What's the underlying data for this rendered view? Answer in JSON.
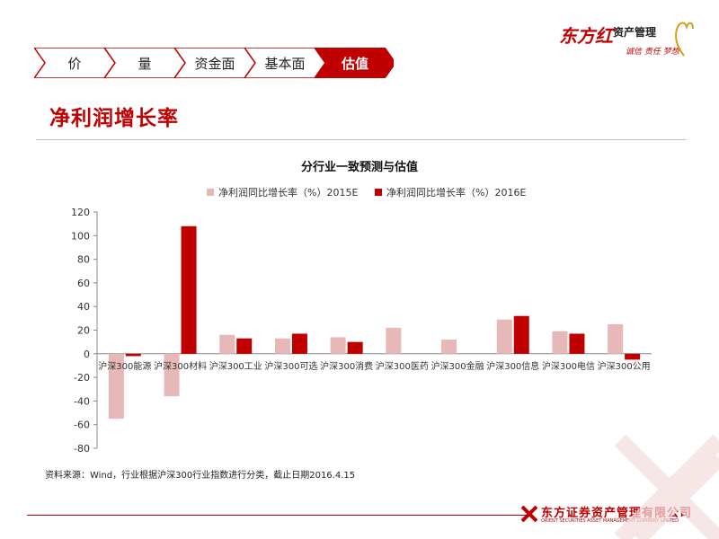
{
  "nav": {
    "tabs": [
      {
        "label": "价",
        "active": false
      },
      {
        "label": "量",
        "active": false
      },
      {
        "label": "资金面",
        "active": false
      },
      {
        "label": "基本面",
        "active": false
      },
      {
        "label": "估值",
        "active": true
      }
    ]
  },
  "logo_top": {
    "brand": "东方红",
    "sub": "资产管理",
    "slogan": "诚信 责任 梦想"
  },
  "page_title": "净利润增长率",
  "chart_data": {
    "type": "bar",
    "title": "分行业一致预测与估值",
    "categories": [
      "沪深300能源",
      "沪深300材料",
      "沪深300工业",
      "沪深300可选",
      "沪深300消费",
      "沪深300医药",
      "沪深300金融",
      "沪深300信息",
      "沪深300电信",
      "沪深300公用"
    ],
    "series": [
      {
        "name": "净利润同比增长率（%）2015E",
        "color": "#e6b9b8",
        "values": [
          -55,
          -36,
          16,
          13,
          14,
          22,
          12,
          29,
          19,
          25
        ]
      },
      {
        "name": "净利润同比增长率（%）2016E",
        "color": "#c00000",
        "values": [
          -2,
          108,
          13,
          17,
          10,
          null,
          null,
          32,
          17,
          -5
        ]
      }
    ],
    "ylim": [
      -80,
      120
    ],
    "yticks": [
      -80,
      -60,
      -40,
      -20,
      0,
      20,
      40,
      60,
      80,
      100,
      120
    ],
    "xlabel": "",
    "ylabel": "",
    "grid": false,
    "legend": "top"
  },
  "source": "资料来源：Wind，行业根据沪深300行业指数进行分类，截止日期2016.4.15",
  "logo_bottom": {
    "name": "东方证券资产管理有限公司",
    "en": "ORIENT SECURITIES ASSET MANAGEMENT COMPANY LIMITED"
  }
}
